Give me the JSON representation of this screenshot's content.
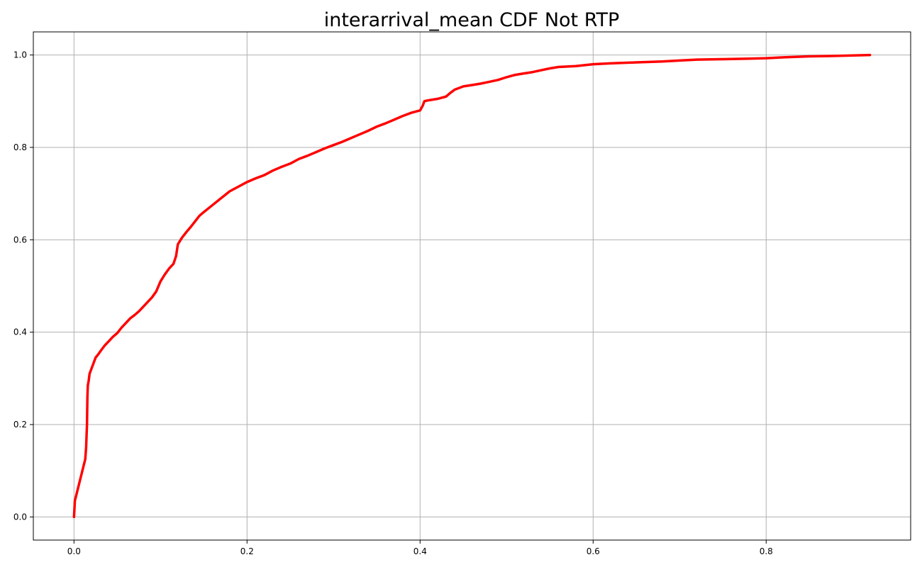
{
  "chart_data": {
    "type": "line",
    "title": "interarrival_mean CDF Not RTP",
    "xlabel": "",
    "ylabel": "",
    "xlim": [
      -0.047,
      0.967
    ],
    "ylim": [
      -0.05,
      1.05
    ],
    "x_ticks": [
      0.0,
      0.2,
      0.4,
      0.6,
      0.8
    ],
    "x_tick_labels": [
      "0.0",
      "0.2",
      "0.4",
      "0.6",
      "0.8"
    ],
    "y_ticks": [
      0.0,
      0.2,
      0.4,
      0.6,
      0.8,
      1.0
    ],
    "y_tick_labels": [
      "0.0",
      "0.2",
      "0.4",
      "0.6",
      "0.8",
      "1.0"
    ],
    "grid": true,
    "legend": "none",
    "line_color": "#ff0000",
    "grid_color": "#b0b0b0",
    "series": [
      {
        "x": [
          0.0,
          0.001,
          0.003,
          0.005,
          0.007,
          0.009,
          0.011,
          0.013,
          0.014,
          0.015,
          0.0155,
          0.016,
          0.017,
          0.018,
          0.02,
          0.022,
          0.025,
          0.028,
          0.031,
          0.035,
          0.04,
          0.045,
          0.05,
          0.055,
          0.06,
          0.065,
          0.07,
          0.075,
          0.08,
          0.085,
          0.09,
          0.095,
          0.1,
          0.105,
          0.11,
          0.115,
          0.118,
          0.12,
          0.125,
          0.13,
          0.135,
          0.14,
          0.145,
          0.15,
          0.16,
          0.17,
          0.18,
          0.19,
          0.2,
          0.21,
          0.22,
          0.23,
          0.24,
          0.25,
          0.26,
          0.27,
          0.28,
          0.29,
          0.3,
          0.31,
          0.32,
          0.33,
          0.34,
          0.35,
          0.36,
          0.37,
          0.38,
          0.39,
          0.4,
          0.403,
          0.405,
          0.41,
          0.42,
          0.43,
          0.435,
          0.44,
          0.45,
          0.46,
          0.47,
          0.48,
          0.49,
          0.5,
          0.51,
          0.52,
          0.53,
          0.54,
          0.55,
          0.56,
          0.58,
          0.6,
          0.62,
          0.65,
          0.68,
          0.7,
          0.72,
          0.75,
          0.78,
          0.8,
          0.82,
          0.85,
          0.88,
          0.9,
          0.92
        ],
        "y": [
          0.0,
          0.035,
          0.05,
          0.065,
          0.08,
          0.095,
          0.11,
          0.125,
          0.15,
          0.2,
          0.26,
          0.285,
          0.295,
          0.31,
          0.32,
          0.33,
          0.345,
          0.352,
          0.36,
          0.37,
          0.38,
          0.39,
          0.398,
          0.41,
          0.42,
          0.43,
          0.437,
          0.445,
          0.455,
          0.465,
          0.475,
          0.488,
          0.51,
          0.525,
          0.538,
          0.548,
          0.565,
          0.59,
          0.605,
          0.617,
          0.628,
          0.64,
          0.652,
          0.66,
          0.675,
          0.69,
          0.705,
          0.715,
          0.725,
          0.733,
          0.74,
          0.75,
          0.758,
          0.765,
          0.775,
          0.782,
          0.79,
          0.798,
          0.805,
          0.812,
          0.82,
          0.828,
          0.836,
          0.845,
          0.852,
          0.86,
          0.868,
          0.875,
          0.88,
          0.89,
          0.9,
          0.902,
          0.905,
          0.91,
          0.918,
          0.925,
          0.932,
          0.935,
          0.938,
          0.942,
          0.946,
          0.952,
          0.957,
          0.96,
          0.963,
          0.967,
          0.971,
          0.974,
          0.976,
          0.98,
          0.982,
          0.984,
          0.986,
          0.988,
          0.99,
          0.991,
          0.992,
          0.993,
          0.995,
          0.997,
          0.998,
          0.999,
          1.0
        ]
      }
    ]
  }
}
